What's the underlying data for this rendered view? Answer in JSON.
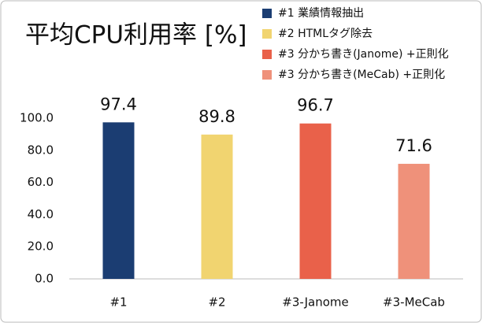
{
  "chart_data": {
    "type": "bar",
    "title": "平均CPU利用率 [%]",
    "categories": [
      "#1",
      "#2",
      "#3-Janome",
      "#3-MeCab"
    ],
    "values": [
      97.4,
      89.8,
      96.7,
      71.6
    ],
    "colors": [
      "#1b3d72",
      "#f1d470",
      "#e9614a",
      "#ef917a"
    ],
    "legend": [
      "#1 業績情報抽出",
      "#2 HTMLタグ除去",
      "#3 分かち書き(Janome) +正則化",
      "#3 分かち書き(MeCab)  +正則化"
    ],
    "ylim": [
      0,
      100
    ],
    "yticks": [
      {
        "value": 0,
        "label": "0.0"
      },
      {
        "value": 20,
        "label": "20.0"
      },
      {
        "value": 40,
        "label": "40.0"
      },
      {
        "value": 60,
        "label": "60.0"
      },
      {
        "value": 80,
        "label": "80.0"
      },
      {
        "value": 100,
        "label": "100.0"
      }
    ],
    "grid": false
  }
}
